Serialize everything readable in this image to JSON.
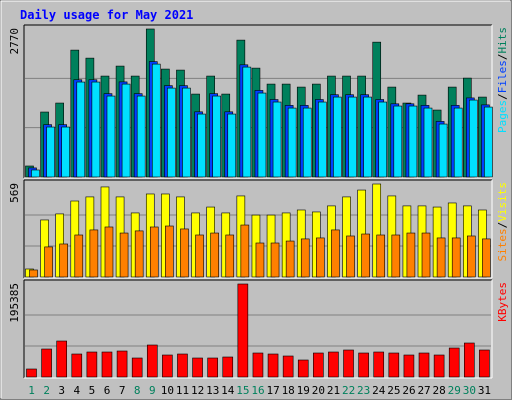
{
  "chart_data": {
    "type": "bar",
    "title": "Daily usage for May 2021",
    "categories": [
      "1",
      "2",
      "3",
      "4",
      "5",
      "6",
      "7",
      "8",
      "9",
      "10",
      "11",
      "12",
      "13",
      "14",
      "15",
      "16",
      "17",
      "18",
      "19",
      "20",
      "21",
      "22",
      "23",
      "24",
      "25",
      "26",
      "27",
      "28",
      "29",
      "30",
      "31"
    ],
    "category_colors": [
      "#00805c",
      "#00805c",
      "#000000",
      "#000000",
      "#000000",
      "#000000",
      "#000000",
      "#00805c",
      "#00805c",
      "#000000",
      "#000000",
      "#000000",
      "#000000",
      "#000000",
      "#00805c",
      "#00805c",
      "#000000",
      "#000000",
      "#000000",
      "#000000",
      "#000000",
      "#00805c",
      "#00805c",
      "#000000",
      "#000000",
      "#000000",
      "#000000",
      "#000000",
      "#00805c",
      "#00805c",
      "#000000"
    ],
    "legend_separator": "/",
    "panels": [
      {
        "ylim": [
          0,
          2770
        ],
        "yticks": [
          2770
        ],
        "series": [
          {
            "name": "Hits",
            "color": "#00805c",
            "values": [
              206,
              1216,
              1384,
              2375,
              2225,
              1889,
              2076,
              1889,
              2770,
              2020,
              2001,
              1552,
              1889,
              1552,
              2562,
              2038,
              1739,
              1739,
              1683,
              1739,
              1889,
              1889,
              1889,
              2524,
              1683,
              1384,
              1533,
              1253,
              1683,
              1851,
              1496
            ]
          },
          {
            "name": "Files",
            "color": "#0040ff",
            "values": [
              170,
              980,
              980,
              1820,
              1820,
              1560,
              1780,
              1560,
              2160,
              1710,
              1710,
              1220,
              1560,
              1220,
              2100,
              1620,
              1450,
              1340,
              1340,
              1450,
              1540,
              1540,
              1540,
              1450,
              1370,
              1370,
              1340,
              1040,
              1340,
              1480,
              1350
            ]
          },
          {
            "name": "Pages",
            "color": "#00e0ff",
            "values": [
              131,
              935,
              935,
              1777,
              1777,
              1515,
              1739,
              1515,
              2113,
              1664,
              1664,
              1178,
              1515,
              1178,
              2057,
              1571,
              1403,
              1290,
              1290,
              1403,
              1496,
              1496,
              1496,
              1403,
              1328,
              1328,
              1290,
              991,
              1290,
              1440,
              1309
            ]
          }
        ]
      },
      {
        "ylim": [
          0,
          569
        ],
        "yticks": [
          569
        ],
        "series": [
          {
            "name": "Visits",
            "color": "#ffff00",
            "values": [
              49,
              349,
              386,
              465,
              490,
              551,
              490,
              392,
              508,
              508,
              490,
              392,
              428,
              392,
              496,
              379,
              379,
              392,
              410,
              398,
              435,
              490,
              532,
              569,
              496,
              435,
              435,
              428,
              453,
              435,
              410
            ]
          },
          {
            "name": "Sites",
            "color": "#ff8000",
            "values": [
              43,
              184,
              202,
              257,
              288,
              306,
              269,
              282,
              306,
              312,
              294,
              257,
              269,
              257,
              318,
              208,
              208,
              220,
              233,
              239,
              288,
              251,
              263,
              257,
              257,
              269,
              269,
              239,
              239,
              251,
              233
            ]
          }
        ]
      },
      {
        "ylim": [
          0,
          195385
        ],
        "yticks": [
          195385
        ],
        "series": [
          {
            "name": "KBytes",
            "color": "#ff0000",
            "values": [
              16800,
              58800,
              75600,
              48300,
              52500,
              52500,
              54600,
              39900,
              67200,
              46200,
              48300,
              39900,
              39900,
              42000,
              195385,
              50400,
              48300,
              44100,
              35700,
              50400,
              52500,
              56700,
              50400,
              52500,
              50400,
              46200,
              50400,
              46200,
              60900,
              71400,
              56700
            ]
          }
        ]
      }
    ]
  }
}
